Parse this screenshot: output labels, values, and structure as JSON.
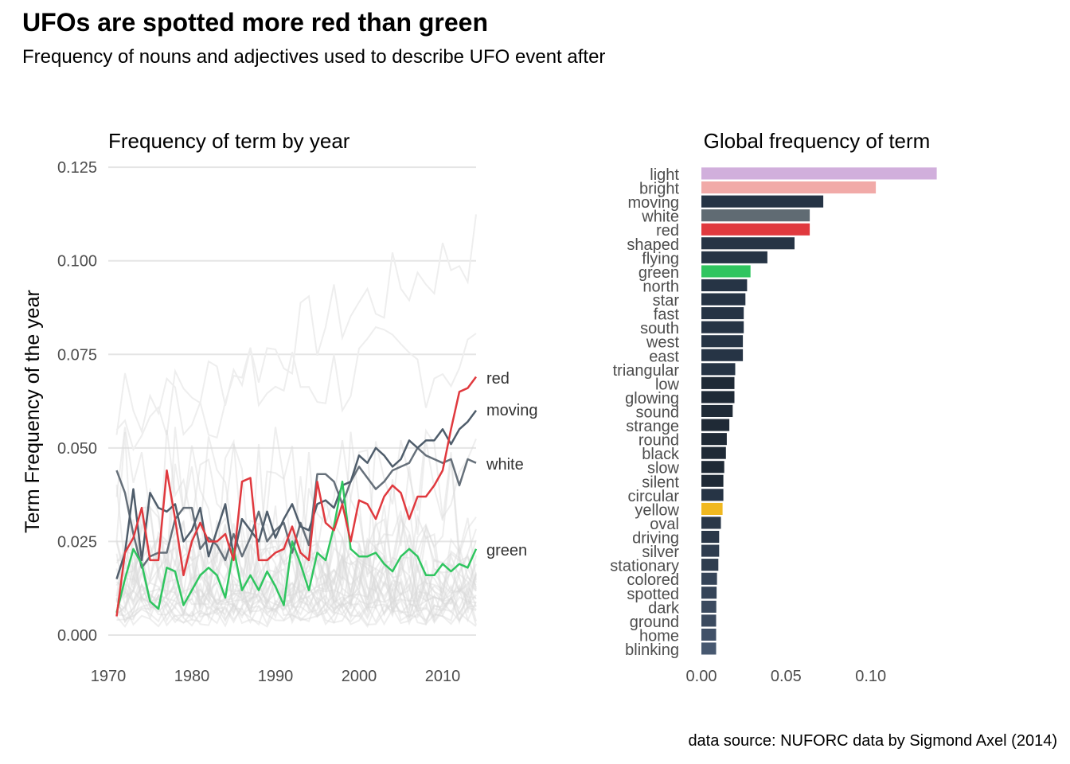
{
  "title": "UFOs are spotted more red than green",
  "subtitle": "Frequency of nouns and adjectives used to describe UFO event after",
  "caption": "data source: NUFORC data by Sigmond Axel (2014)",
  "chart_data": [
    {
      "type": "line",
      "title": "Frequency of term by year",
      "xlabel": "",
      "ylabel": "Term Frequency of the year",
      "xlim": [
        1970,
        2014
      ],
      "ylim": [
        0,
        0.128
      ],
      "x_ticks": [
        1970,
        1980,
        1990,
        2000,
        2010
      ],
      "x_tick_labels": [
        "1970",
        "1980",
        "1990",
        "2000",
        "2010"
      ],
      "y_ticks": [
        0,
        0.025,
        0.05,
        0.075,
        0.1,
        0.125
      ],
      "y_tick_labels": [
        "0.000",
        "0.025",
        "0.050",
        "0.075",
        "0.100",
        "0.125"
      ],
      "grid": true,
      "x": [
        1971,
        1972,
        1973,
        1974,
        1975,
        1976,
        1977,
        1978,
        1979,
        1980,
        1981,
        1982,
        1983,
        1984,
        1985,
        1986,
        1987,
        1988,
        1989,
        1990,
        1991,
        1992,
        1993,
        1994,
        1995,
        1996,
        1997,
        1998,
        1999,
        2000,
        2001,
        2002,
        2003,
        2004,
        2005,
        2006,
        2007,
        2008,
        2009,
        2010,
        2011,
        2012,
        2013,
        2014
      ],
      "series": [
        {
          "name": "red",
          "color": "#e0393e",
          "values": [
            0.005,
            0.022,
            0.026,
            0.034,
            0.02,
            0.02,
            0.044,
            0.031,
            0.016,
            0.025,
            0.03,
            0.025,
            0.025,
            0.027,
            0.02,
            0.041,
            0.042,
            0.02,
            0.02,
            0.022,
            0.023,
            0.029,
            0.022,
            0.02,
            0.041,
            0.03,
            0.028,
            0.035,
            0.025,
            0.036,
            0.035,
            0.031,
            0.037,
            0.04,
            0.038,
            0.031,
            0.037,
            0.037,
            0.04,
            0.044,
            0.055,
            0.065,
            0.066,
            0.069
          ]
        },
        {
          "name": "moving",
          "color": "#4f5d6b",
          "values": [
            0.015,
            0.022,
            0.039,
            0.02,
            0.038,
            0.034,
            0.033,
            0.035,
            0.025,
            0.028,
            0.034,
            0.021,
            0.028,
            0.035,
            0.021,
            0.031,
            0.028,
            0.025,
            0.033,
            0.026,
            0.031,
            0.035,
            0.029,
            0.028,
            0.035,
            0.036,
            0.034,
            0.04,
            0.041,
            0.048,
            0.046,
            0.05,
            0.048,
            0.045,
            0.047,
            0.052,
            0.05,
            0.052,
            0.052,
            0.055,
            0.051,
            0.055,
            0.057,
            0.06
          ]
        },
        {
          "name": "white",
          "color": "#66707a",
          "values": [
            0.044,
            0.038,
            0.027,
            0.018,
            0.021,
            0.022,
            0.022,
            0.031,
            0.034,
            0.034,
            0.023,
            0.026,
            0.024,
            0.02,
            0.027,
            0.021,
            0.026,
            0.033,
            0.025,
            0.028,
            0.03,
            0.022,
            0.03,
            0.024,
            0.043,
            0.043,
            0.041,
            0.035,
            0.041,
            0.045,
            0.042,
            0.039,
            0.041,
            0.044,
            0.045,
            0.046,
            0.05,
            0.048,
            0.047,
            0.046,
            0.047,
            0.04,
            0.047,
            0.046
          ]
        },
        {
          "name": "green",
          "color": "#2fc55f",
          "values": [
            0.006,
            0.015,
            0.023,
            0.019,
            0.009,
            0.007,
            0.018,
            0.017,
            0.008,
            0.012,
            0.016,
            0.018,
            0.016,
            0.01,
            0.023,
            0.012,
            0.016,
            0.012,
            0.017,
            0.013,
            0.008,
            0.025,
            0.019,
            0.012,
            0.022,
            0.02,
            0.029,
            0.041,
            0.023,
            0.021,
            0.021,
            0.022,
            0.019,
            0.017,
            0.021,
            0.023,
            0.021,
            0.016,
            0.016,
            0.019,
            0.017,
            0.019,
            0.018,
            0.023
          ]
        }
      ]
    },
    {
      "type": "bar",
      "orientation": "horizontal",
      "title": "Global frequency of term",
      "xlabel": "",
      "ylabel": "",
      "xlim": [
        0,
        0.142
      ],
      "x_ticks": [
        0,
        0.05,
        0.1
      ],
      "x_tick_labels": [
        "0.00",
        "0.05",
        "0.10"
      ],
      "categories": [
        "light",
        "bright",
        "moving",
        "white",
        "red",
        "shaped",
        "flying",
        "green",
        "north",
        "star",
        "fast",
        "south",
        "west",
        "east",
        "triangular",
        "low",
        "glowing",
        "sound",
        "strange",
        "round",
        "black",
        "slow",
        "silent",
        "circular",
        "yellow",
        "oval",
        "driving",
        "silver",
        "stationary",
        "colored",
        "spotted",
        "dark",
        "ground",
        "home",
        "blinking"
      ],
      "values": [
        0.139,
        0.103,
        0.072,
        0.064,
        0.064,
        0.055,
        0.039,
        0.029,
        0.027,
        0.026,
        0.025,
        0.025,
        0.0245,
        0.0245,
        0.02,
        0.0195,
        0.0195,
        0.0185,
        0.0165,
        0.015,
        0.0145,
        0.0135,
        0.013,
        0.013,
        0.0125,
        0.0115,
        0.0105,
        0.0105,
        0.01,
        0.0092,
        0.009,
        0.0088,
        0.0087,
        0.0087,
        0.0087
      ],
      "colors": [
        "#d1afdc",
        "#f1aaa8",
        "#263445",
        "#606b73",
        "#e0393e",
        "#263445",
        "#263445",
        "#2fc55f",
        "#263445",
        "#263445",
        "#263445",
        "#263445",
        "#263445",
        "#263445",
        "#263445",
        "#1f2a36",
        "#1f2a36",
        "#1f2a36",
        "#1f2a36",
        "#1f2a36",
        "#1f2a36",
        "#1f2a36",
        "#1f2a36",
        "#263445",
        "#f0b820",
        "#2a3748",
        "#2a3748",
        "#2f3d4f",
        "#2f3d4f",
        "#354458",
        "#354458",
        "#3b4a5f",
        "#3b4a5f",
        "#405067",
        "#475870"
      ]
    }
  ]
}
